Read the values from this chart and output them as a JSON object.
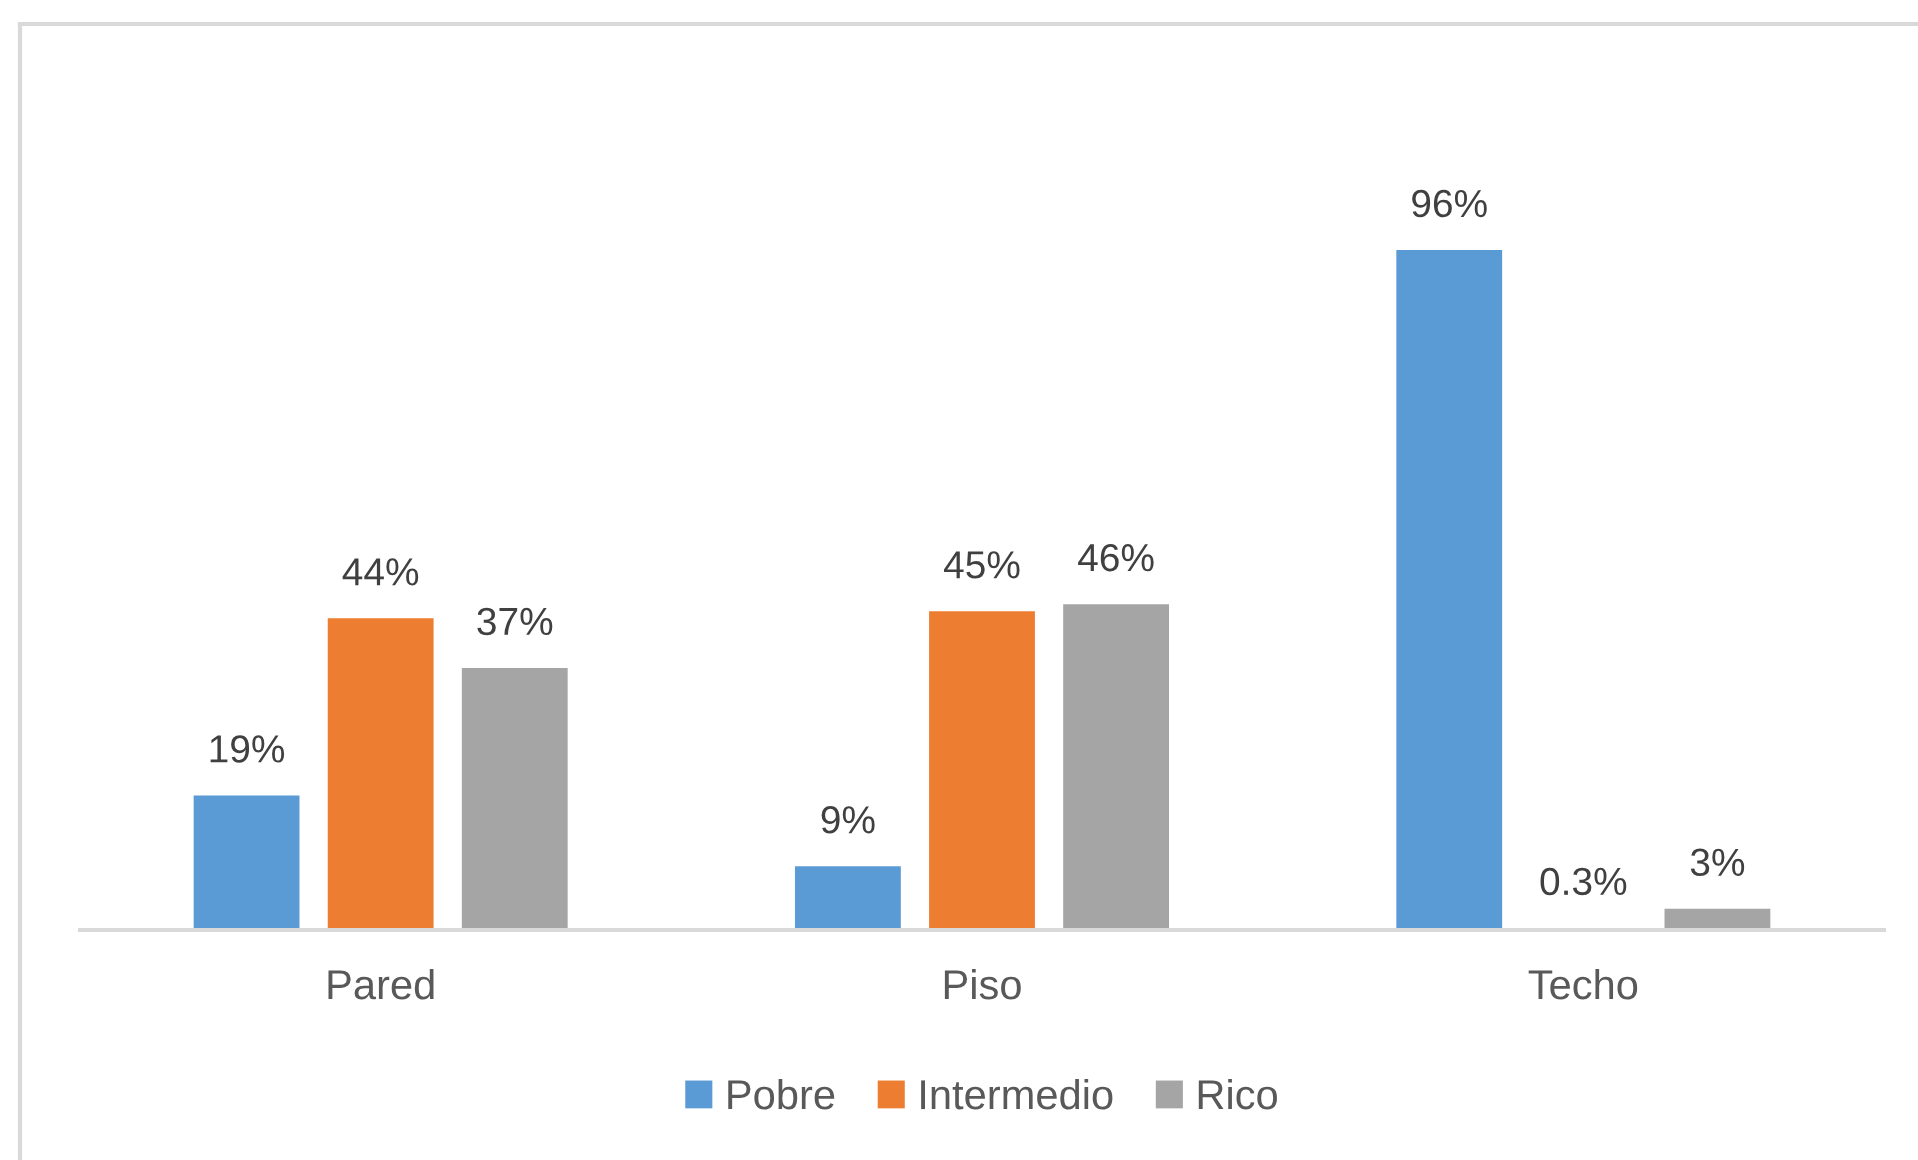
{
  "chart_data": {
    "type": "bar",
    "categories": [
      "Pared",
      "Piso",
      "Techo"
    ],
    "series": [
      {
        "name": "Pobre",
        "color": "#5b9bd5",
        "values": [
          19,
          9,
          96
        ],
        "value_labels": [
          "19%",
          "9%",
          "96%"
        ]
      },
      {
        "name": "Intermedio",
        "color": "#ed7d31",
        "values": [
          44,
          45,
          0.3
        ],
        "value_labels": [
          "44%",
          "45%",
          "0.3%"
        ]
      },
      {
        "name": "Rico",
        "color": "#a5a5a5",
        "values": [
          37,
          46,
          3
        ],
        "value_labels": [
          "37%",
          "46%",
          "3%"
        ]
      }
    ],
    "legend": "bottom"
  }
}
